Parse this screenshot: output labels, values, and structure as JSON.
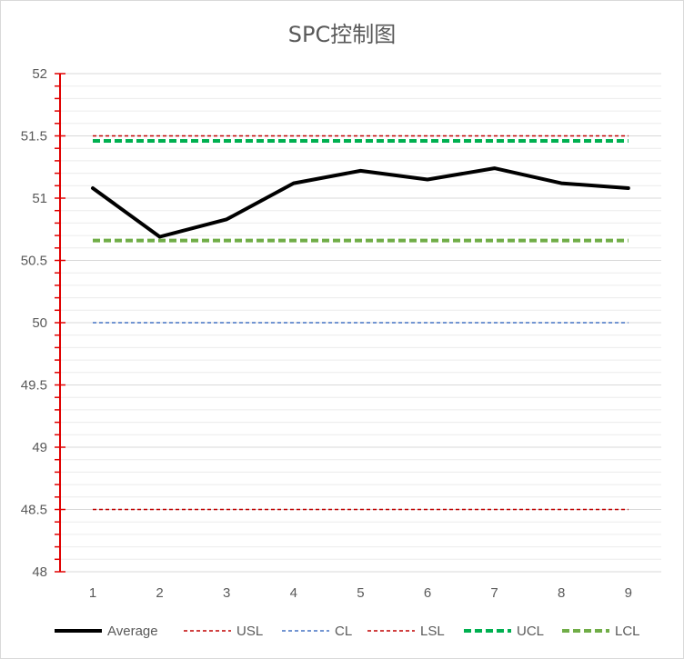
{
  "chart_data": {
    "type": "line",
    "title": "SPC控制图",
    "x": [
      "1",
      "2",
      "3",
      "4",
      "5",
      "6",
      "7",
      "8",
      "9"
    ],
    "ylim": [
      48,
      52
    ],
    "yticks": [
      "48",
      "48.5",
      "49",
      "49.5",
      "50",
      "50.5",
      "51",
      "51.5",
      "52"
    ],
    "ymajor_step": 0.5,
    "ygrid_minor_step": 0.1,
    "grid": true,
    "legend_position": "bottom",
    "series": [
      {
        "name": "Average",
        "values": [
          51.08,
          50.69,
          50.83,
          51.12,
          51.22,
          51.15,
          51.24,
          51.12,
          51.08
        ],
        "color": "#000000",
        "style": "solid"
      },
      {
        "name": "USL",
        "values": [
          51.5,
          51.5,
          51.5,
          51.5,
          51.5,
          51.5,
          51.5,
          51.5,
          51.5
        ],
        "color": "#c00000",
        "style": "dashed"
      },
      {
        "name": "CL",
        "values": [
          50,
          50,
          50,
          50,
          50,
          50,
          50,
          50,
          50
        ],
        "color": "#4472c4",
        "style": "dashed"
      },
      {
        "name": "LSL",
        "values": [
          48.5,
          48.5,
          48.5,
          48.5,
          48.5,
          48.5,
          48.5,
          48.5,
          48.5
        ],
        "color": "#c00000",
        "style": "dashed"
      },
      {
        "name": "UCL",
        "values": [
          51.46,
          51.46,
          51.46,
          51.46,
          51.46,
          51.46,
          51.46,
          51.46,
          51.46
        ],
        "color": "#00b050",
        "style": "thick-dashed"
      },
      {
        "name": "LCL",
        "values": [
          50.66,
          50.66,
          50.66,
          50.66,
          50.66,
          50.66,
          50.66,
          50.66,
          50.66
        ],
        "color": "#70ad47",
        "style": "thick-dashed"
      }
    ],
    "axis_color": "#e00000"
  }
}
